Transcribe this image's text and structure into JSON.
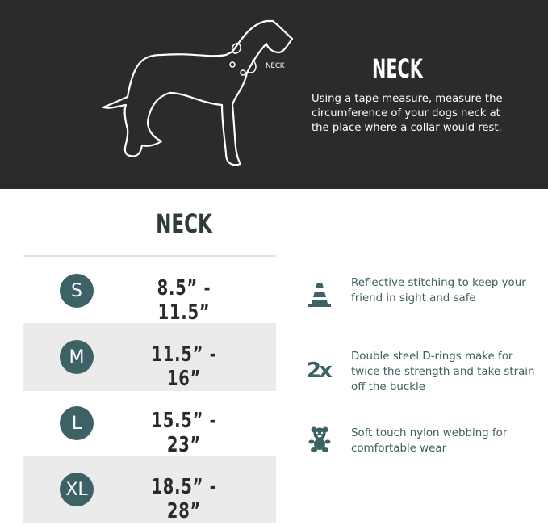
{
  "hero": {
    "dog_label": "NECK",
    "title": "NECK",
    "description": "Using a tape measure, measure the circumference of your dogs neck at the place where a collar would rest."
  },
  "table": {
    "title": "NECK",
    "rows": [
      {
        "size": "S",
        "range": "8.5” - 11.5”"
      },
      {
        "size": "M",
        "range": "11.5” - 16”"
      },
      {
        "size": "L",
        "range": "15.5” - 23”"
      },
      {
        "size": "XL",
        "range": "18.5” - 28”"
      }
    ]
  },
  "features": [
    {
      "icon": "traffic-cone-icon",
      "text": "Reflective stitching to keep your friend in sight and safe"
    },
    {
      "icon": "2x-icon",
      "icon_text": "2x",
      "text": "Double steel D-rings make for twice the strength and take strain off the buckle"
    },
    {
      "icon": "teddy-bear-icon",
      "text": "Soft touch nylon webbing for comfortable wear"
    }
  ],
  "colors": {
    "hero_bg": "#2b2b2b",
    "accent": "#3d6266",
    "row_alt": "#ebebeb"
  }
}
